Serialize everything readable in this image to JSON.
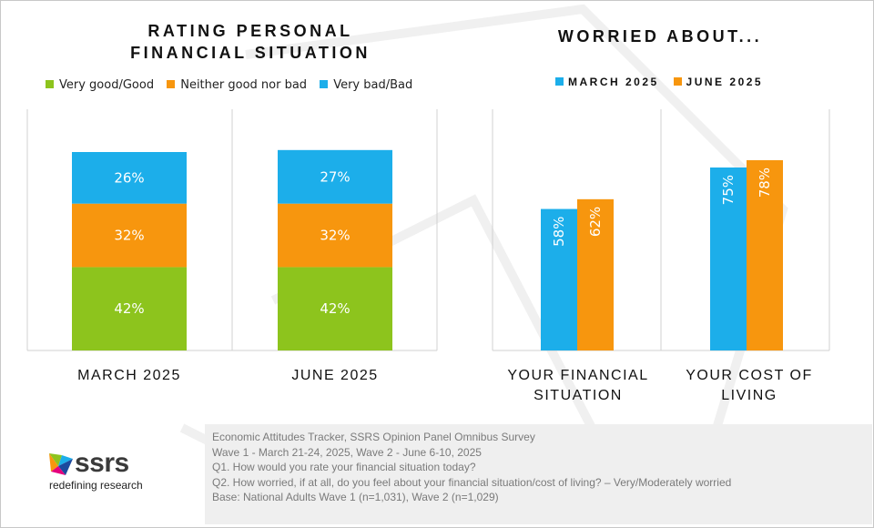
{
  "left_chart": {
    "title": "RATING PERSONAL\nFINANCIAL SITUATION",
    "legend": [
      {
        "label": "Very good/Good",
        "color": "#8DC41D"
      },
      {
        "label": "Neither good nor bad",
        "color": "#F7960E"
      },
      {
        "label": "Very bad/Bad",
        "color": "#1CAEEA"
      }
    ],
    "categories": [
      "MARCH 2025",
      "JUNE 2025"
    ]
  },
  "right_chart": {
    "title": "WORRIED ABOUT...",
    "legend": [
      {
        "label": "MARCH 2025",
        "color": "#1CAEEA"
      },
      {
        "label": "JUNE 2025",
        "color": "#F7960E"
      }
    ],
    "categories": [
      "YOUR FINANCIAL\nSITUATION",
      "YOUR COST OF\nLIVING"
    ]
  },
  "chart_data": [
    {
      "type": "bar",
      "stacked": true,
      "title": "RATING PERSONAL FINANCIAL SITUATION",
      "categories": [
        "MARCH 2025",
        "JUNE 2025"
      ],
      "series": [
        {
          "name": "Very good/Good",
          "values": [
            42,
            42
          ],
          "labels": [
            "42%",
            "42%"
          ],
          "color": "#8DC41D"
        },
        {
          "name": "Neither good nor bad",
          "values": [
            32,
            32
          ],
          "labels": [
            "32%",
            "32%"
          ],
          "color": "#F7960E"
        },
        {
          "name": "Very bad/Bad",
          "values": [
            26,
            27
          ],
          "labels": [
            "26%",
            "27%"
          ],
          "color": "#1CAEEA"
        }
      ],
      "ylim": [
        0,
        100
      ],
      "grid": false,
      "legend": "top"
    },
    {
      "type": "bar",
      "stacked": false,
      "title": "WORRIED ABOUT...",
      "categories": [
        "YOUR FINANCIAL SITUATION",
        "YOUR COST OF LIVING"
      ],
      "series": [
        {
          "name": "MARCH 2025",
          "values": [
            58,
            75
          ],
          "labels": [
            "58%",
            "75%"
          ],
          "color": "#1CAEEA"
        },
        {
          "name": "JUNE 2025",
          "values": [
            62,
            78
          ],
          "labels": [
            "62%",
            "78%"
          ],
          "color": "#F7960E"
        }
      ],
      "ylim": [
        0,
        100
      ],
      "grid": false,
      "legend": "top"
    }
  ],
  "notes": [
    "Economic Attitudes Tracker, SSRS Opinion Panel Omnibus Survey",
    "Wave 1 - March 21-24, 2025, Wave 2 - June 6-10, 2025",
    "Q1. How would you rate your financial situation today?",
    "Q2. How worried, if at all, do you feel about your financial situation/cost of living? – Very/Moderately worried",
    "Base: National Adults Wave 1 (n=1,031), Wave 2 (n=1,029)"
  ],
  "logo": {
    "name": "ssrs",
    "tagline": "redefining research"
  }
}
